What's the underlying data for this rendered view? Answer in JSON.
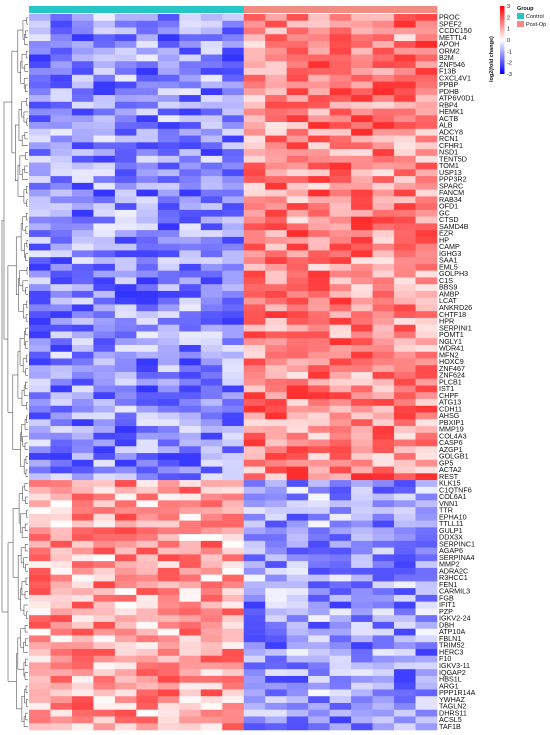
{
  "chart_data": {
    "type": "heatmap",
    "title": "",
    "xlabel": "",
    "ylabel": "",
    "columns": {
      "count": 19,
      "groups": [
        "Control",
        "Control",
        "Control",
        "Control",
        "Control",
        "Control",
        "Control",
        "Control",
        "Control",
        "Control",
        "Post-Op",
        "Post-Op",
        "Post-Op",
        "Post-Op",
        "Post-Op",
        "Post-Op",
        "Post-Op",
        "Post-Op",
        "Post-Op"
      ]
    },
    "column_annotation": {
      "title": "Group",
      "levels": [
        "Control",
        "Post-Op"
      ],
      "colors": {
        "Control": "#26c6c6",
        "Post-Op": "#f28b82"
      }
    },
    "color_scale": {
      "title": "log2(fold change)",
      "ticks": [
        "3",
        "2",
        "1",
        "0",
        "-1",
        "-2",
        "-3"
      ],
      "min": -3,
      "max": 3,
      "low_color": "#0000ff",
      "mid_color": "#ffffff",
      "high_color": "#ff0000"
    },
    "rows_upregulated": [
      "PROC",
      "SPEF2",
      "CCDC150",
      "METTL4",
      "APOH",
      "ORM2",
      "B2M",
      "ZNF546",
      "F13B",
      "CXCL4V1",
      "PPBP",
      "PDHB",
      "ATP6V0D1",
      "RBP4",
      "HEMK1",
      "ACTB",
      "ALB",
      "ADCY8",
      "RCN1",
      "CFHR1",
      "NSD1",
      "TENT5D",
      "TOM1",
      "USP13",
      "PPP3R2",
      "SPARC",
      "FANCM",
      "RAB34",
      "OFD1",
      "GC",
      "CTSD",
      "SAMD4B",
      "EZR",
      "HP",
      "CAMP",
      "IGHG3",
      "SAA1",
      "EML5",
      "GOLPH3",
      "C1S",
      "BBS9",
      "AMBP",
      "LCAT",
      "ANKRD26",
      "CHTF18",
      "HPR",
      "SERPINI1",
      "POMT1",
      "NGLY1",
      "WDR41",
      "MFN2",
      "HOXC9",
      "ZNF467",
      "ZNF624",
      "PLCB1",
      "IST1",
      "CHPF",
      "ATG13",
      "CDH11",
      "AHSG",
      "PBXIP1",
      "MMP19",
      "COL4A3",
      "CASP6",
      "AZGP1",
      "GOLGB1",
      "GP5",
      "ACTA2",
      "REST"
    ],
    "rows_downregulated": [
      "KLK15",
      "C1QTNF6",
      "COL6A1",
      "VNN1",
      "TTR",
      "EPHA10",
      "TTLL11",
      "GULP1",
      "DDX3X",
      "SERPINC1",
      "AGAP6",
      "SERPINA4",
      "MMP2",
      "ADRA2C",
      "R3HCC1",
      "FEN1",
      "CARMIL3",
      "FGB",
      "IFIT1",
      "PZP",
      "IGKV2-24",
      "DBH",
      "ATP10A",
      "FBLN1",
      "TRIM52",
      "HERC3",
      "F10",
      "IGKV3-11",
      "IQGAP2",
      "HBS1L",
      "ARG1",
      "PPP1R14A",
      "YWHAZ",
      "TAGLN2",
      "DHRS11",
      "ACSL5",
      "TAF1B"
    ],
    "pattern": {
      "upregulated_rows": {
        "Control": -1.3,
        "Post-Op": 1.4
      },
      "downregulated_rows": {
        "Control": 1.1,
        "Post-Op": -1.2
      }
    }
  }
}
